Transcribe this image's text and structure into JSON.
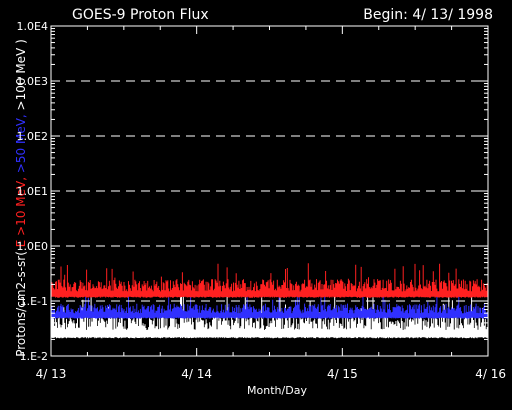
{
  "chart_data": {
    "type": "line",
    "title": "GOES-9 Proton Flux",
    "begin_label": "Begin: 4/ 13/ 1998",
    "xlabel": "Month/Day",
    "ylabel_parts": [
      {
        "text": "Protons/cm2-s-sr( ",
        "color": "#ffffff"
      },
      {
        "text": "E >10 MeV, ",
        "color": "#ff2020"
      },
      {
        "text": ">50 MeV, ",
        "color": "#3030ff"
      },
      {
        "text": ">100 MeV )",
        "color": "#ffffff"
      }
    ],
    "xlim": [
      0,
      3
    ],
    "x_ticks": [
      {
        "value": 0,
        "label": "4/ 13"
      },
      {
        "value": 1,
        "label": "4/ 14"
      },
      {
        "value": 2,
        "label": "4/ 15"
      },
      {
        "value": 3,
        "label": "4/ 16"
      }
    ],
    "y_scale": "log",
    "ylim": [
      0.01,
      10000
    ],
    "y_ticks": [
      {
        "value": 0.01,
        "label": "1.E-2"
      },
      {
        "value": 0.1,
        "label": "1.E-1"
      },
      {
        "value": 1,
        "label": "1.0E0"
      },
      {
        "value": 10,
        "label": "1.0E1"
      },
      {
        "value": 100,
        "label": "1.0E2"
      },
      {
        "value": 1000,
        "label": "1.0E3"
      },
      {
        "value": 10000,
        "label": "1.0E4"
      }
    ],
    "gridlines_dashed_at": [
      0.1,
      1,
      10,
      100,
      1000
    ],
    "series": [
      {
        "key": "gt100",
        "color": "#ffffff",
        "base": 0.022,
        "typical_peak": 0.06,
        "spike_max": 0.15
      },
      {
        "key": "gt50",
        "color": "#3030ff",
        "base": 0.05,
        "typical_peak": 0.09,
        "spike_max": 0.16
      },
      {
        "key": "gt10",
        "color": "#ff2020",
        "base": 0.12,
        "typical_peak": 0.25,
        "spike_max": 0.5
      }
    ]
  }
}
